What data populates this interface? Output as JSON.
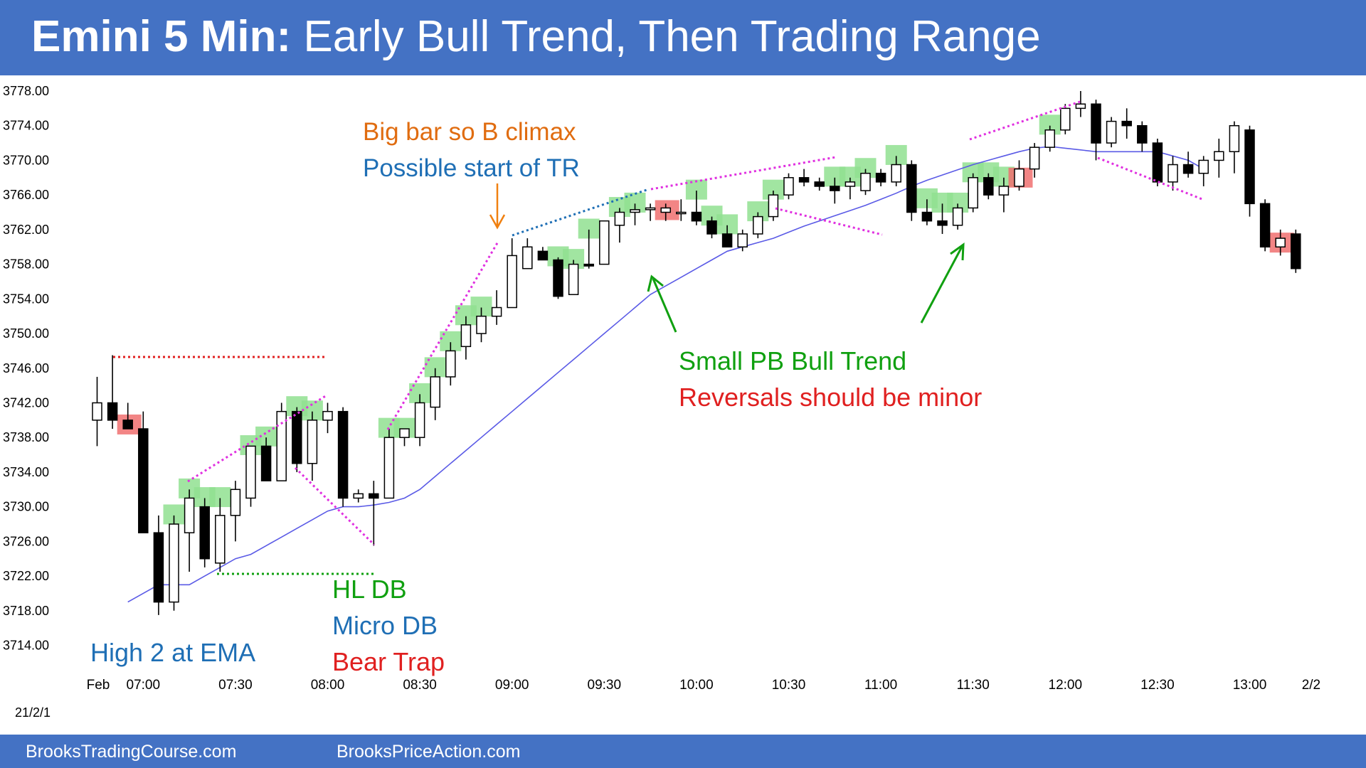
{
  "title": {
    "bold": "Emini 5 Min:",
    "rest": " Early Bull Trend, Then Trading Range"
  },
  "footer": {
    "left": "BrooksTradingCourse.com",
    "right": "BrooksPriceAction.com"
  },
  "date_stamp": "21/2/1",
  "colors": {
    "header": "#4472c4",
    "bull_signal": "#90e090",
    "bear_signal": "#f07070",
    "ema": "#5a5ae6",
    "trendline": "#e030e0"
  },
  "chart_data": {
    "type": "candlestick",
    "y_axis": {
      "ticks": [
        "3778.00",
        "3774.00",
        "3770.00",
        "3766.00",
        "3762.00",
        "3758.00",
        "3754.00",
        "3750.00",
        "3746.00",
        "3742.00",
        "3738.00",
        "3734.00",
        "3730.00",
        "3726.00",
        "3722.00",
        "3718.00",
        "3714.00"
      ],
      "min": 3712,
      "max": 3779
    },
    "x_axis": {
      "ticks": [
        {
          "label": "Feb",
          "bar": 0
        },
        {
          "label": "07:00",
          "bar": 3
        },
        {
          "label": "07:30",
          "bar": 9
        },
        {
          "label": "08:00",
          "bar": 15
        },
        {
          "label": "08:30",
          "bar": 21
        },
        {
          "label": "09:00",
          "bar": 27
        },
        {
          "label": "09:30",
          "bar": 33
        },
        {
          "label": "10:00",
          "bar": 39
        },
        {
          "label": "10:30",
          "bar": 45
        },
        {
          "label": "11:00",
          "bar": 51
        },
        {
          "label": "11:30",
          "bar": 57
        },
        {
          "label": "12:00",
          "bar": 63
        },
        {
          "label": "12:30",
          "bar": 69
        },
        {
          "label": "13:00",
          "bar": 75
        },
        {
          "label": "2/2",
          "bar": 79
        }
      ]
    },
    "candles": [
      {
        "o": 3740.0,
        "h": 3745.0,
        "l": 3737.0,
        "c": 3742.0
      },
      {
        "o": 3742.0,
        "h": 3747.5,
        "l": 3739.0,
        "c": 3740.0
      },
      {
        "o": 3740.0,
        "h": 3742.0,
        "l": 3739.0,
        "c": 3739.0
      },
      {
        "o": 3739.0,
        "h": 3741.0,
        "l": 3727.0,
        "c": 3727.0
      },
      {
        "o": 3727.0,
        "h": 3729.0,
        "l": 3717.5,
        "c": 3719.0
      },
      {
        "o": 3719.0,
        "h": 3729.0,
        "l": 3718.0,
        "c": 3728.0
      },
      {
        "o": 3727.0,
        "h": 3732.0,
        "l": 3722.5,
        "c": 3731.0
      },
      {
        "o": 3730.0,
        "h": 3731.0,
        "l": 3723.0,
        "c": 3724.0
      },
      {
        "o": 3723.5,
        "h": 3731.0,
        "l": 3722.5,
        "c": 3729.0
      },
      {
        "o": 3729.0,
        "h": 3733.0,
        "l": 3726.0,
        "c": 3732.0
      },
      {
        "o": 3731.0,
        "h": 3737.0,
        "l": 3730.0,
        "c": 3737.0
      },
      {
        "o": 3737.0,
        "h": 3738.0,
        "l": 3733.0,
        "c": 3733.0
      },
      {
        "o": 3733.0,
        "h": 3742.0,
        "l": 3733.0,
        "c": 3741.0
      },
      {
        "o": 3741.0,
        "h": 3741.5,
        "l": 3734.0,
        "c": 3735.0
      },
      {
        "o": 3735.0,
        "h": 3741.0,
        "l": 3733.0,
        "c": 3740.0
      },
      {
        "o": 3740.0,
        "h": 3742.0,
        "l": 3738.5,
        "c": 3741.0
      },
      {
        "o": 3741.0,
        "h": 3741.5,
        "l": 3730.0,
        "c": 3731.0
      },
      {
        "o": 3731.0,
        "h": 3732.0,
        "l": 3730.5,
        "c": 3731.5
      },
      {
        "o": 3731.5,
        "h": 3733.0,
        "l": 3725.5,
        "c": 3731.0
      },
      {
        "o": 3731.0,
        "h": 3739.0,
        "l": 3731.0,
        "c": 3738.0
      },
      {
        "o": 3738.0,
        "h": 3739.0,
        "l": 3737.0,
        "c": 3739.0
      },
      {
        "o": 3738.0,
        "h": 3743.0,
        "l": 3737.0,
        "c": 3742.0
      },
      {
        "o": 3741.5,
        "h": 3746.0,
        "l": 3740.0,
        "c": 3745.0
      },
      {
        "o": 3745.0,
        "h": 3749.0,
        "l": 3744.0,
        "c": 3748.0
      },
      {
        "o": 3748.5,
        "h": 3752.0,
        "l": 3747.0,
        "c": 3751.0
      },
      {
        "o": 3750.0,
        "h": 3753.0,
        "l": 3749.0,
        "c": 3752.0
      },
      {
        "o": 3752.0,
        "h": 3755.0,
        "l": 3751.0,
        "c": 3753.0
      },
      {
        "o": 3753.0,
        "h": 3761.0,
        "l": 3753.0,
        "c": 3759.0
      },
      {
        "o": 3757.5,
        "h": 3761.0,
        "l": 3757.5,
        "c": 3760.0
      },
      {
        "o": 3759.5,
        "h": 3760.0,
        "l": 3758.5,
        "c": 3758.5
      },
      {
        "o": 3758.5,
        "h": 3758.8,
        "l": 3754.0,
        "c": 3754.3
      },
      {
        "o": 3754.5,
        "h": 3758.5,
        "l": 3754.5,
        "c": 3758.0
      },
      {
        "o": 3758.0,
        "h": 3762.0,
        "l": 3757.5,
        "c": 3757.8
      },
      {
        "o": 3758.0,
        "h": 3763.0,
        "l": 3758.0,
        "c": 3763.0
      },
      {
        "o": 3762.5,
        "h": 3764.5,
        "l": 3760.5,
        "c": 3764.0
      },
      {
        "o": 3764.0,
        "h": 3765.0,
        "l": 3762.5,
        "c": 3764.3
      },
      {
        "o": 3764.3,
        "h": 3765.0,
        "l": 3763.0,
        "c": 3764.5
      },
      {
        "o": 3764.0,
        "h": 3765.0,
        "l": 3763.0,
        "c": 3764.5
      },
      {
        "o": 3764.0,
        "h": 3765.5,
        "l": 3763.0,
        "c": 3764.0
      },
      {
        "o": 3764.0,
        "h": 3766.5,
        "l": 3762.5,
        "c": 3763.0
      },
      {
        "o": 3763.0,
        "h": 3763.5,
        "l": 3761.0,
        "c": 3761.5
      },
      {
        "o": 3761.5,
        "h": 3762.5,
        "l": 3760.0,
        "c": 3760.0
      },
      {
        "o": 3760.0,
        "h": 3762.0,
        "l": 3759.5,
        "c": 3761.5
      },
      {
        "o": 3761.5,
        "h": 3764.0,
        "l": 3761.0,
        "c": 3763.5
      },
      {
        "o": 3763.5,
        "h": 3766.5,
        "l": 3763.0,
        "c": 3766.0
      },
      {
        "o": 3766.0,
        "h": 3768.5,
        "l": 3765.5,
        "c": 3768.0
      },
      {
        "o": 3768.0,
        "h": 3769.0,
        "l": 3767.0,
        "c": 3767.5
      },
      {
        "o": 3767.5,
        "h": 3768.0,
        "l": 3766.5,
        "c": 3767.0
      },
      {
        "o": 3767.0,
        "h": 3768.0,
        "l": 3765.0,
        "c": 3766.5
      },
      {
        "o": 3767.0,
        "h": 3768.0,
        "l": 3765.5,
        "c": 3767.5
      },
      {
        "o": 3766.5,
        "h": 3769.0,
        "l": 3766.0,
        "c": 3768.5
      },
      {
        "o": 3768.5,
        "h": 3769.0,
        "l": 3767.0,
        "c": 3767.5
      },
      {
        "o": 3767.5,
        "h": 3770.5,
        "l": 3767.0,
        "c": 3769.5
      },
      {
        "o": 3769.5,
        "h": 3770.0,
        "l": 3763.0,
        "c": 3764.0
      },
      {
        "o": 3764.0,
        "h": 3765.5,
        "l": 3762.5,
        "c": 3763.0
      },
      {
        "o": 3763.0,
        "h": 3765.0,
        "l": 3761.5,
        "c": 3762.5
      },
      {
        "o": 3762.5,
        "h": 3765.0,
        "l": 3762.0,
        "c": 3764.5
      },
      {
        "o": 3764.5,
        "h": 3768.5,
        "l": 3764.0,
        "c": 3768.0
      },
      {
        "o": 3768.0,
        "h": 3768.5,
        "l": 3765.5,
        "c": 3766.0
      },
      {
        "o": 3766.0,
        "h": 3768.0,
        "l": 3764.0,
        "c": 3767.0
      },
      {
        "o": 3767.0,
        "h": 3770.0,
        "l": 3766.5,
        "c": 3769.0
      },
      {
        "o": 3769.0,
        "h": 3772.0,
        "l": 3768.0,
        "c": 3771.5
      },
      {
        "o": 3771.5,
        "h": 3774.0,
        "l": 3771.0,
        "c": 3773.5
      },
      {
        "o": 3773.5,
        "h": 3776.5,
        "l": 3773.0,
        "c": 3776.0
      },
      {
        "o": 3776.0,
        "h": 3778.0,
        "l": 3775.0,
        "c": 3776.5
      },
      {
        "o": 3776.5,
        "h": 3777.0,
        "l": 3770.0,
        "c": 3772.0
      },
      {
        "o": 3772.0,
        "h": 3775.0,
        "l": 3771.5,
        "c": 3774.5
      },
      {
        "o": 3774.5,
        "h": 3776.0,
        "l": 3772.5,
        "c": 3774.0
      },
      {
        "o": 3774.0,
        "h": 3774.5,
        "l": 3771.0,
        "c": 3772.0
      },
      {
        "o": 3772.0,
        "h": 3772.5,
        "l": 3767.0,
        "c": 3767.5
      },
      {
        "o": 3767.5,
        "h": 3770.5,
        "l": 3766.5,
        "c": 3769.5
      },
      {
        "o": 3769.5,
        "h": 3771.0,
        "l": 3768.0,
        "c": 3768.5
      },
      {
        "o": 3768.5,
        "h": 3770.5,
        "l": 3767.0,
        "c": 3770.0
      },
      {
        "o": 3770.0,
        "h": 3772.5,
        "l": 3768.0,
        "c": 3771.0
      },
      {
        "o": 3771.0,
        "h": 3774.5,
        "l": 3768.5,
        "c": 3774.0
      },
      {
        "o": 3773.5,
        "h": 3774.0,
        "l": 3763.5,
        "c": 3765.0
      },
      {
        "o": 3765.0,
        "h": 3765.5,
        "l": 3759.5,
        "c": 3760.0
      },
      {
        "o": 3760.0,
        "h": 3762.0,
        "l": 3759.0,
        "c": 3761.0
      },
      {
        "o": 3761.5,
        "h": 3762.0,
        "l": 3757.0,
        "c": 3757.5
      }
    ],
    "ema": [
      3719,
      3720,
      3721,
      3721,
      3721,
      3722,
      3723,
      3724,
      3724.5,
      3725.5,
      3726.5,
      3727.5,
      3728.5,
      3729.5,
      3730,
      3730,
      3730.2,
      3730.5,
      3731,
      3732,
      3733.5,
      3735,
      3736.5,
      3738,
      3739.5,
      3741,
      3742.5,
      3744,
      3745.5,
      3747,
      3748.5,
      3750,
      3751.5,
      3753,
      3754.5,
      3755.5,
      3756.5,
      3757.5,
      3758.5,
      3759.5,
      3760,
      3760.5,
      3761,
      3761.7,
      3762.4,
      3763,
      3763.6,
      3764.2,
      3764.8,
      3765.5,
      3766.2,
      3767,
      3767.7,
      3768.3,
      3768.9,
      3769.5,
      3770,
      3770.5,
      3771,
      3771.4,
      3771.6,
      3771.4,
      3771.2,
      3771,
      3771,
      3771,
      3771,
      3771,
      3770.5,
      3770,
      3769
    ]
  },
  "annotations": {
    "big_bar": "Big bar so B climax",
    "possible_tr": "Possible start of TR",
    "small_pb": "Small PB Bull Trend",
    "reversals": "Reversals should be minor",
    "hl_db": "HL DB",
    "micro_db": "Micro DB",
    "bear_trap": "Bear Trap",
    "high2": "High 2 at EMA"
  }
}
